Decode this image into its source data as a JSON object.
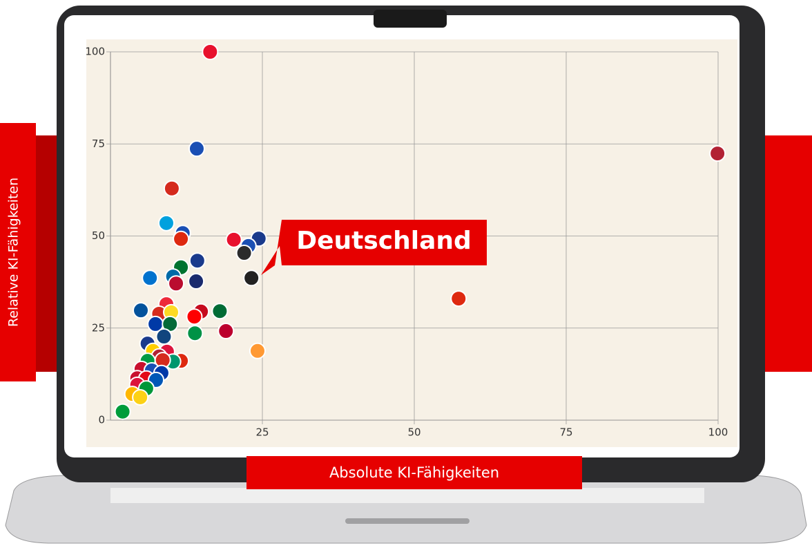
{
  "chart_data": {
    "type": "scatter",
    "x_label": "Absolute KI-Fähigkeiten",
    "y_label": "Relative KI-Fähigkeiten",
    "annotation": "Deutschland",
    "x": [
      16.4,
      14.2,
      10.1,
      9.2,
      11.9,
      11.6,
      20.3,
      24.4,
      22.7,
      22.0,
      14.3,
      11.6,
      6.5,
      10.3,
      10.8,
      14.1,
      23.2,
      57.3,
      99.9,
      5.0,
      9.2,
      8.0,
      10.0,
      14.9,
      18.0,
      13.8,
      7.4,
      9.8,
      19.0,
      13.9,
      8.8,
      24.2,
      6.1,
      7.0,
      9.3,
      8.0,
      6.1,
      11.6,
      10.3,
      8.6,
      5.1,
      6.8,
      8.4,
      4.4,
      5.9,
      7.5,
      4.4,
      5.9,
      3.6,
      4.9,
      2.0
    ],
    "values": [
      100,
      73.7,
      62.9,
      53.5,
      50.8,
      49.2,
      49.0,
      49.3,
      47.3,
      45.4,
      43.3,
      41.5,
      38.6,
      39.0,
      37.1,
      37.7,
      38.6,
      33.0,
      72.4,
      29.8,
      31.5,
      28.9,
      29.3,
      29.5,
      29.6,
      28.1,
      26.1,
      26.1,
      24.2,
      23.6,
      22.7,
      18.8,
      20.8,
      18.8,
      18.6,
      17.3,
      16.1,
      16.1,
      15.9,
      16.3,
      13.9,
      13.5,
      12.8,
      11.4,
      11.3,
      10.9,
      9.6,
      8.6,
      7.1,
      6.2,
      2.3
    ],
    "colors": [
      "#e8112d",
      "#1a4fb4",
      "#d52b1e",
      "#00a1de",
      "#1a4fb4",
      "#de2910",
      "#e8112d",
      "#1a3a8c",
      "#1a4fb4",
      "#2b2b2b",
      "#1a3a8c",
      "#00732f",
      "#0072ce",
      "#006aa7",
      "#ba0c2f",
      "#1a2b6e",
      "#222222",
      "#de2910",
      "#b22234",
      "#02529c",
      "#ed2939",
      "#d52b1e",
      "#fdda24",
      "#c60b1e",
      "#006c35",
      "#fe0000",
      "#0039a6",
      "#046a38",
      "#bc002d",
      "#009246",
      "#11457e",
      "#ff9933",
      "#1a3a8c",
      "#ffce00",
      "#dc143c",
      "#b22234",
      "#009a44",
      "#de2910",
      "#00966e",
      "#d52b1e",
      "#c8102e",
      "#1a4fb4",
      "#0038a8",
      "#c8102e",
      "#e30a17",
      "#0057b7",
      "#dc143c",
      "#009739",
      "#ffb700",
      "#fcd116",
      "#009c3b"
    ],
    "xlim": [
      0,
      100
    ],
    "ylim": [
      0,
      100
    ],
    "xticks": [
      25,
      50,
      75,
      100
    ],
    "yticks": [
      0,
      25,
      50,
      75,
      100
    ],
    "grid": true
  }
}
